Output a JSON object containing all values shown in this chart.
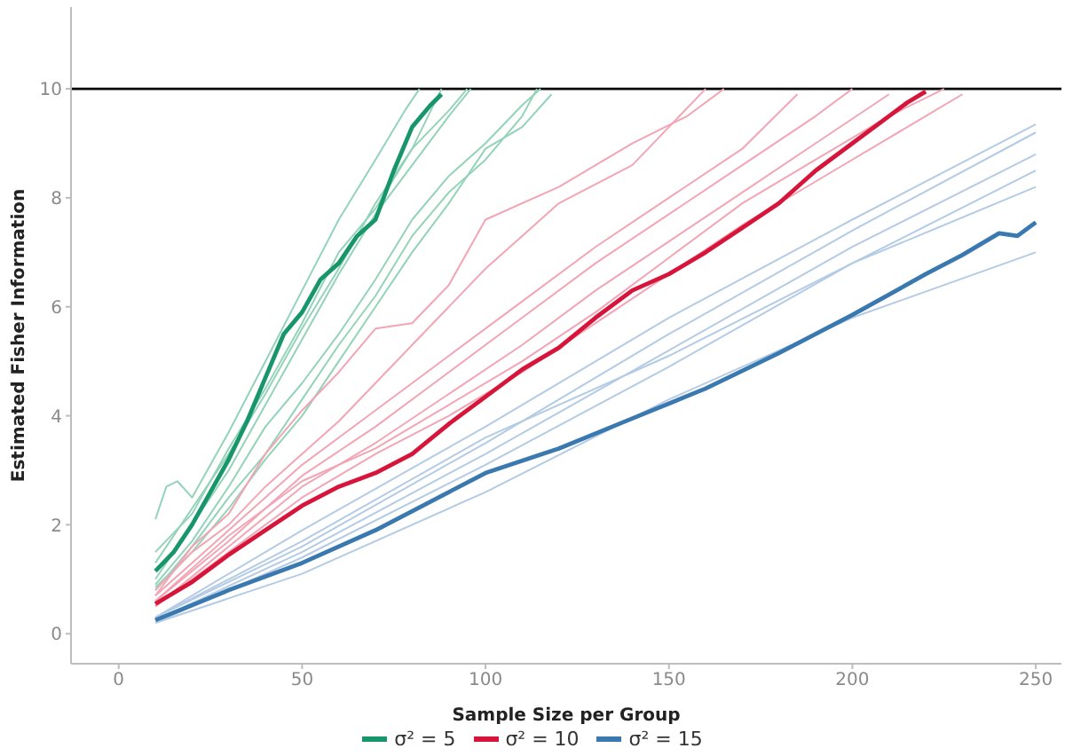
{
  "chart_data": {
    "type": "line",
    "xlabel": "Sample Size per Group",
    "ylabel": "Estimated Fisher Information",
    "xlim": [
      -13,
      257
    ],
    "ylim": [
      -0.55,
      11.5
    ],
    "xticks": [
      0,
      50,
      100,
      150,
      200,
      250
    ],
    "yticks": [
      0,
      2,
      4,
      6,
      8,
      10
    ],
    "grid": false,
    "legend": "bottom",
    "marker": "none",
    "line_style": "solid",
    "ref_lines": [
      {
        "axis": "y",
        "value": 10,
        "color": "#000000"
      }
    ],
    "series": [
      {
        "color": "#93d3b9",
        "x": [
          10,
          13,
          16,
          20,
          30,
          40,
          50,
          60,
          70,
          78,
          82
        ],
        "values": [
          2.1,
          2.7,
          2.8,
          2.5,
          3.7,
          5.0,
          6.3,
          7.6,
          8.7,
          9.6,
          10.0
        ]
      },
      {
        "color": "#93d3b9",
        "x": [
          10,
          20,
          30,
          40,
          50,
          60,
          70,
          80,
          90,
          95
        ],
        "values": [
          1.5,
          2.2,
          3.4,
          4.5,
          5.7,
          7.0,
          7.8,
          8.9,
          9.6,
          10.0
        ]
      },
      {
        "color": "#93d3b9",
        "x": [
          10,
          20,
          30,
          40,
          50,
          60,
          70,
          80,
          90,
          96
        ],
        "values": [
          1.0,
          2.0,
          3.0,
          4.2,
          5.4,
          6.6,
          7.7,
          8.6,
          9.5,
          10.0
        ]
      },
      {
        "color": "#93d3b9",
        "x": [
          10,
          20,
          30,
          40,
          50,
          60,
          70,
          80,
          90,
          100,
          110,
          115
        ],
        "values": [
          0.9,
          1.7,
          2.7,
          3.8,
          4.6,
          5.5,
          6.5,
          7.6,
          8.4,
          9.0,
          9.7,
          10.0
        ]
      },
      {
        "color": "#93d3b9",
        "x": [
          10,
          20,
          30,
          40,
          50,
          60,
          70,
          80,
          90,
          100,
          110,
          114
        ],
        "values": [
          0.8,
          1.6,
          2.5,
          3.3,
          4.3,
          5.3,
          6.2,
          7.3,
          8.1,
          8.7,
          9.5,
          10.0
        ]
      },
      {
        "color": "#93d3b9",
        "x": [
          10,
          20,
          30,
          40,
          50,
          60,
          70,
          80,
          88
        ],
        "values": [
          1.3,
          2.3,
          3.3,
          4.4,
          5.6,
          6.7,
          7.9,
          8.9,
          10.0
        ]
      },
      {
        "color": "#93d3b9",
        "x": [
          10,
          20,
          30,
          40,
          50,
          60,
          70,
          80,
          90,
          100,
          110,
          118
        ],
        "values": [
          0.85,
          1.5,
          2.3,
          3.2,
          4.0,
          5.0,
          6.0,
          7.0,
          7.9,
          8.9,
          9.3,
          9.9
        ]
      },
      {
        "color": "#f2a5b5",
        "x": [
          10,
          20,
          30,
          40,
          50,
          60,
          70,
          80,
          90,
          100,
          120,
          140,
          155,
          165
        ],
        "values": [
          0.7,
          1.6,
          2.2,
          3.3,
          4.1,
          4.8,
          5.6,
          5.7,
          6.4,
          7.6,
          8.2,
          9.0,
          9.5,
          10.0
        ]
      },
      {
        "color": "#f2a5b5",
        "x": [
          10,
          20,
          30,
          40,
          50,
          60,
          70,
          80,
          90,
          100,
          110,
          120,
          140,
          150,
          160
        ],
        "values": [
          0.8,
          1.5,
          2.0,
          2.7,
          3.3,
          3.9,
          4.6,
          5.3,
          6.0,
          6.7,
          7.3,
          7.9,
          8.6,
          9.3,
          10.0
        ]
      },
      {
        "color": "#f2a5b5",
        "x": [
          10,
          30,
          50,
          70,
          90,
          110,
          130,
          150,
          170,
          190,
          200
        ],
        "values": [
          0.6,
          1.7,
          2.9,
          3.8,
          4.8,
          5.8,
          6.8,
          7.7,
          8.6,
          9.5,
          10.0
        ]
      },
      {
        "color": "#f2a5b5",
        "x": [
          10,
          30,
          50,
          70,
          90,
          110,
          130,
          150,
          170,
          190,
          210
        ],
        "values": [
          0.5,
          1.6,
          2.7,
          3.5,
          4.4,
          5.3,
          6.3,
          7.2,
          8.1,
          9.0,
          9.9
        ]
      },
      {
        "color": "#f2a5b5",
        "x": [
          10,
          30,
          50,
          70,
          90,
          110,
          130,
          150,
          170,
          190,
          210,
          225
        ],
        "values": [
          0.6,
          1.8,
          2.8,
          3.4,
          4.2,
          5.0,
          5.9,
          6.9,
          7.9,
          8.7,
          9.5,
          10.0
        ]
      },
      {
        "color": "#f2a5b5",
        "x": [
          10,
          30,
          50,
          70,
          90,
          110,
          130,
          150,
          170,
          185
        ],
        "values": [
          0.7,
          1.9,
          3.1,
          4.1,
          5.1,
          6.1,
          7.1,
          8.0,
          8.9,
          9.9
        ]
      },
      {
        "color": "#f2a5b5",
        "x": [
          10,
          30,
          50,
          70,
          90,
          110,
          130,
          150,
          170,
          190,
          210,
          220,
          230
        ],
        "values": [
          0.5,
          1.5,
          2.5,
          3.3,
          4.0,
          4.8,
          5.7,
          6.6,
          7.5,
          8.3,
          9.1,
          9.5,
          9.9
        ]
      },
      {
        "color": "#b3cbe4",
        "x": [
          10,
          50,
          100,
          150,
          200,
          250
        ],
        "values": [
          0.3,
          1.9,
          3.8,
          5.8,
          7.6,
          9.35
        ]
      },
      {
        "color": "#b3cbe4",
        "x": [
          10,
          50,
          100,
          150,
          200,
          250
        ],
        "values": [
          0.3,
          1.6,
          3.5,
          5.5,
          7.4,
          9.2
        ]
      },
      {
        "color": "#b3cbe4",
        "x": [
          10,
          50,
          100,
          150,
          200,
          250
        ],
        "values": [
          0.25,
          1.5,
          3.3,
          5.2,
          7.1,
          8.8
        ]
      },
      {
        "color": "#b3cbe4",
        "x": [
          10,
          50,
          100,
          150,
          200,
          250
        ],
        "values": [
          0.2,
          1.4,
          3.1,
          4.9,
          6.8,
          8.5
        ]
      },
      {
        "color": "#b3cbe4",
        "x": [
          10,
          50,
          100,
          150,
          200,
          250
        ],
        "values": [
          0.3,
          1.7,
          3.6,
          5.1,
          6.8,
          8.2
        ]
      },
      {
        "color": "#b3cbe4",
        "x": [
          10,
          50,
          100,
          150,
          200,
          250
        ],
        "values": [
          0.2,
          1.1,
          2.6,
          4.3,
          5.8,
          7.0
        ]
      },
      {
        "name": "σ² = 5",
        "color": "#17956b",
        "x": [
          10,
          15,
          20,
          25,
          30,
          35,
          40,
          45,
          50,
          55,
          60,
          65,
          70,
          75,
          80,
          85,
          88
        ],
        "values": [
          1.15,
          1.5,
          2.0,
          2.6,
          3.2,
          3.9,
          4.7,
          5.5,
          5.9,
          6.5,
          6.8,
          7.3,
          7.6,
          8.5,
          9.3,
          9.7,
          9.9
        ]
      },
      {
        "name": "σ² = 10",
        "color": "#d7153a",
        "x": [
          10,
          20,
          30,
          40,
          50,
          60,
          70,
          80,
          90,
          100,
          110,
          120,
          130,
          140,
          150,
          160,
          170,
          180,
          190,
          200,
          210,
          215,
          220
        ],
        "values": [
          0.55,
          0.95,
          1.45,
          1.9,
          2.35,
          2.7,
          2.95,
          3.3,
          3.85,
          4.35,
          4.85,
          5.25,
          5.8,
          6.3,
          6.6,
          7.0,
          7.45,
          7.9,
          8.5,
          9.0,
          9.5,
          9.75,
          9.95
        ]
      },
      {
        "name": "σ² = 15",
        "color": "#3a78b0",
        "x": [
          10,
          30,
          50,
          70,
          90,
          100,
          120,
          140,
          160,
          180,
          200,
          220,
          230,
          240,
          245,
          250
        ],
        "values": [
          0.25,
          0.8,
          1.3,
          1.9,
          2.6,
          2.95,
          3.4,
          3.95,
          4.5,
          5.15,
          5.85,
          6.6,
          6.95,
          7.35,
          7.3,
          7.55
        ]
      }
    ]
  }
}
